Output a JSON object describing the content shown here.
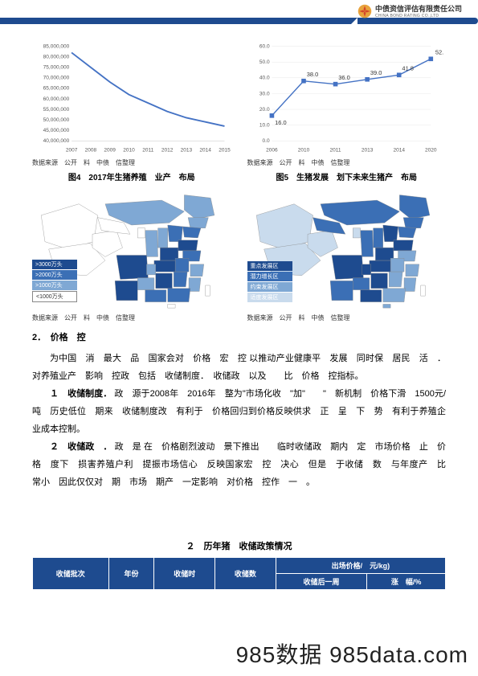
{
  "header": {
    "logo_cn": "中债资信评估有限责任公司",
    "logo_en": "CHINA BOND RATING CO.,LTD"
  },
  "chart_left": {
    "type": "line",
    "y_ticks": [
      "40,000,000",
      "45,000,000",
      "50,000,000",
      "55,000,000",
      "60,000,000",
      "65,000,000",
      "70,000,000",
      "75,000,000",
      "80,000,000",
      "85,000,000"
    ],
    "x_labels": [
      "2007",
      "2008",
      "2009",
      "2010",
      "2011",
      "2012",
      "2013",
      "2014",
      "2015"
    ],
    "values": [
      82000000,
      75000000,
      68000000,
      62000000,
      58000000,
      54000000,
      51000000,
      49000000,
      47000000
    ],
    "line_color": "#4472c4",
    "tick_fontsize": 7,
    "source": "数据来源　公开　料　中债　信整理"
  },
  "chart_right": {
    "type": "line-marker",
    "y_ticks": [
      "0.0",
      "10.0",
      "20.0",
      "30.0",
      "40.0",
      "50.0",
      "60.0"
    ],
    "x_labels": [
      "2006",
      "2010",
      "2011",
      "2013",
      "2014",
      "2020"
    ],
    "values": [
      16.0,
      38.0,
      36.0,
      39.0,
      41.8,
      52.0
    ],
    "value_labels": [
      "16.0",
      "38.0",
      "36.0",
      "39.0",
      "41.8",
      "52."
    ],
    "line_color": "#4472c4",
    "marker_color": "#4472c4",
    "tick_fontsize": 7,
    "source": "数据来源　公开　料　中债　信整理"
  },
  "fig4": {
    "title": "图4　2017年生猪养殖　业产　布局",
    "legend": [
      {
        "label": ">3000万头",
        "color": "#1e4b8f"
      },
      {
        "label": ">2000万头",
        "color": "#3b6fb5"
      },
      {
        "label": ">1000万头",
        "color": "#7fa8d4"
      },
      {
        "label": "<1000万头",
        "color": "#ffffff",
        "light": true
      }
    ],
    "source": "数据来源　公开　料　中债　信整理"
  },
  "fig5": {
    "title": "图5　生猪发展　划下未来生猪产　布局",
    "legend": [
      {
        "label": "重点发展区",
        "color": "#1e4b8f"
      },
      {
        "label": "潜力增长区",
        "color": "#3b6fb5"
      },
      {
        "label": "约束发展区",
        "color": "#7fa8d4"
      },
      {
        "label": "适度发展区",
        "color": "#c9dbed"
      }
    ],
    "source": "数据来源　公开　料　中债　信整理"
  },
  "body": {
    "section_heading": "2．　价格　控",
    "para1": "为中国　消　最大　品　国家会对　价格　宏　控 以推动产业健康平　发展　同时保　居民　活　．对养殖业产　影响　控政　包括　收储制度．　收储政　以及　　比　价格　控指标。",
    "para2_label": "１　收储制度．",
    "para2": "政　源于2008年　2016年　整为\"市场化收　\"加\"　　\"　新机制　价格下滑　1500元/吨　历史低位　期来　收储制度改　有利于　价格回归到价格反映供求　正　呈　下　势　有利于养殖企业成本控制。",
    "para3_label": "２　收储政　．",
    "para3": "政　是 在　价格剧烈波动　景下推出　　临时收储政　期内　定　市场价格　止　价格　度下　损害养殖户利　提振市场信心　反映国家宏　控　决心　但是　于收储　数　与年度产　比　常小　因此仅仅对　期　市场　期产　一定影响　对价格　控作　一　。",
    "table_title": "２　历年猪　收储政策情况",
    "table": {
      "headers": [
        "收储批次",
        "年份",
        "收储时",
        "收储数",
        "出场价格/　元/kg)"
      ],
      "sub_headers": [
        "",
        "",
        "",
        "",
        "收储后一周",
        "涨　幅/%"
      ]
    }
  },
  "watermark": "985数据 985data.com"
}
